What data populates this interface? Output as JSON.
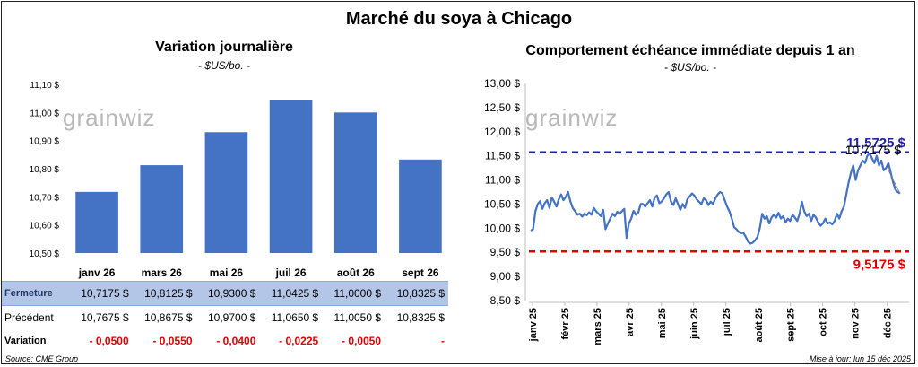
{
  "title": "Marché du soya à Chicago",
  "left_panel": {
    "title": "Variation journalière",
    "unit": "- $US/bo. -"
  },
  "right_panel": {
    "title": "Comportement échéance immédiate depuis 1 an",
    "unit": "- $US/bo. -"
  },
  "watermark": "grainwiz",
  "table": {
    "rows": [
      {
        "label": "Fermeture",
        "cells": [
          "10,7175  $",
          "10,8125  $",
          "10,9300  $",
          "11,0425  $",
          "11,0000  $",
          "10,8325  $"
        ]
      },
      {
        "label": "Précédent",
        "cells": [
          "10,7675  $",
          "10,8675  $",
          "10,9700  $",
          "11,0650  $",
          "11,0050  $",
          "10,8325  $"
        ]
      },
      {
        "label": "Variation",
        "cells": [
          "- 0,0500",
          "- 0,0550",
          "- 0,0400",
          "- 0,0225",
          "- 0,0050",
          "-"
        ]
      }
    ]
  },
  "footer": {
    "source": "Source: CME Group",
    "updated": "Mise à jour: lun 15 déc 2025"
  },
  "colors": {
    "bar": "#4472c4",
    "line": "#4472c4",
    "upper_ref": "#1f1fa8",
    "lower_ref": "#e00000",
    "table_highlight": "#b4c6e7"
  },
  "chart_data": [
    {
      "type": "bar",
      "title": "Variation journalière",
      "categories": [
        "janv 26",
        "mars 26",
        "mai 26",
        "juil 26",
        "août 26",
        "sept 26"
      ],
      "values": [
        10.7175,
        10.8125,
        10.93,
        11.0425,
        11.0,
        10.8325
      ],
      "ylim": [
        10.5,
        11.1
      ],
      "yticks": [
        10.5,
        10.6,
        10.7,
        10.8,
        10.9,
        11.0,
        11.1
      ],
      "ytick_labels": [
        "10,50 $",
        "10,60 $",
        "10,70 $",
        "10,80 $",
        "10,90 $",
        "11,00 $",
        "11,10 $"
      ],
      "grid": false
    },
    {
      "type": "line",
      "title": "Comportement échéance immédiate depuis 1 an",
      "ylim": [
        8.5,
        13.0
      ],
      "yticks": [
        8.5,
        9.0,
        9.5,
        10.0,
        10.5,
        11.0,
        11.5,
        12.0,
        12.5,
        13.0
      ],
      "ytick_labels": [
        "8,50 $",
        "9,00 $",
        "9,50 $",
        "10,00 $",
        "10,50 $",
        "11,00 $",
        "11,50 $",
        "12,00 $",
        "12,50 $",
        "13,00 $"
      ],
      "xtick_labels": [
        "janv 25",
        "févr 25",
        "mars 25",
        "avr 25",
        "mai 25",
        "juin 25",
        "juil 25",
        "août 25",
        "sept 25",
        "oct 25",
        "nov 25",
        "déc 25"
      ],
      "series": [
        {
          "values": [
            9.95,
            9.98,
            10.35,
            10.5,
            10.56,
            10.4,
            10.52,
            10.58,
            10.42,
            10.64,
            10.55,
            10.45,
            10.6,
            10.7,
            10.58,
            10.65,
            10.75,
            10.55,
            10.42,
            10.35,
            10.28,
            10.3,
            10.24,
            10.3,
            10.27,
            10.33,
            10.28,
            10.42,
            10.35,
            10.3,
            10.25,
            10.38,
            9.98,
            10.1,
            10.2,
            10.3,
            10.25,
            10.34,
            10.3,
            10.35,
            10.4,
            9.8,
            10.1,
            10.2,
            10.36,
            10.28,
            10.32,
            10.5,
            10.5,
            10.45,
            10.52,
            10.58,
            10.45,
            10.63,
            10.68,
            10.52,
            10.55,
            10.62,
            10.7,
            10.75,
            10.55,
            10.48,
            10.62,
            10.5,
            10.38,
            10.5,
            10.42,
            10.6,
            10.66,
            10.72,
            10.68,
            10.6,
            10.55,
            10.5,
            10.62,
            10.58,
            10.48,
            10.55,
            10.5,
            10.62,
            10.7,
            10.75,
            10.72,
            10.58,
            10.45,
            10.35,
            10.2,
            10.02,
            9.98,
            9.92,
            9.9,
            9.9,
            9.82,
            9.72,
            9.68,
            9.7,
            9.75,
            9.82,
            10.0,
            10.3,
            10.2,
            10.25,
            10.1,
            10.22,
            10.28,
            10.22,
            10.32,
            10.2,
            10.25,
            10.12,
            10.2,
            10.15,
            10.28,
            10.22,
            10.15,
            10.3,
            10.55,
            10.35,
            10.25,
            10.3,
            10.15,
            10.28,
            10.22,
            10.12,
            10.05,
            10.1,
            10.2,
            10.1,
            10.12,
            10.08,
            10.15,
            10.3,
            10.2,
            10.35,
            10.45,
            10.7,
            10.95,
            11.15,
            11.3,
            11.0,
            11.2,
            11.3,
            11.4,
            11.35,
            11.5,
            11.55,
            11.45,
            11.35,
            11.5,
            11.3,
            11.4,
            11.2,
            11.25,
            11.35,
            11.15,
            10.95,
            10.8,
            10.75,
            10.72
          ],
          "labels": []
        }
      ],
      "reference_lines": [
        {
          "value": 11.5725,
          "label": "11,5725 $",
          "style": "dashed",
          "color": "#1f1fa8"
        },
        {
          "value": 9.5175,
          "label": "9,5175 $",
          "style": "dashed",
          "color": "#e00000"
        }
      ],
      "last_value_label": "10,7175 $",
      "grid": false
    }
  ]
}
